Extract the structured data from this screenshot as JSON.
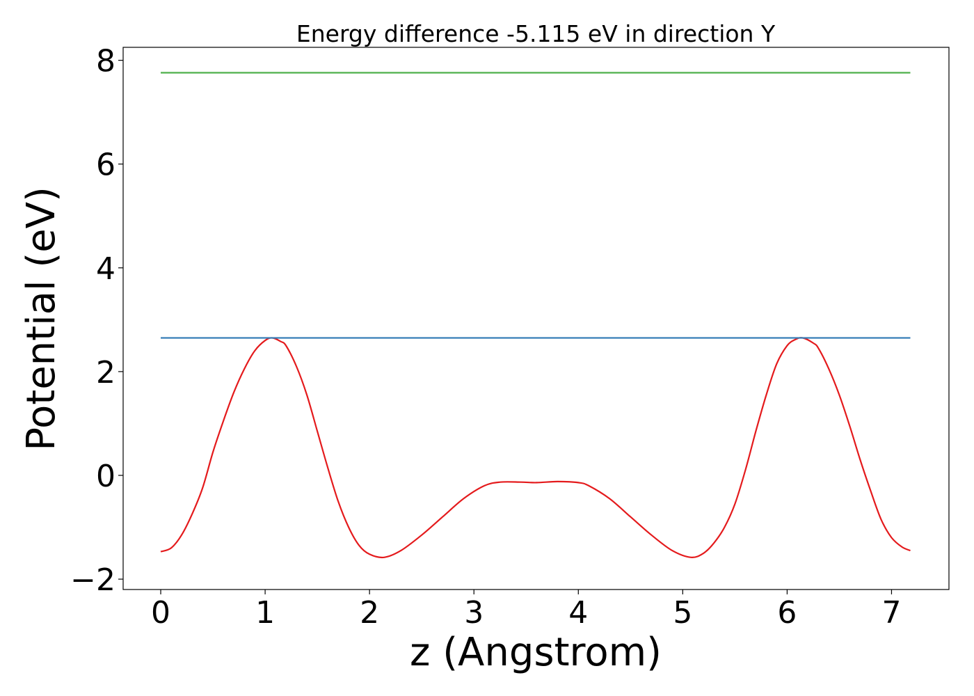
{
  "chart_data": {
    "type": "line",
    "title": "Energy difference -5.115 eV in direction Y",
    "xlabel": "z (Angstrom)",
    "ylabel": "Potential (eV)",
    "xlim": [
      -0.36,
      7.55
    ],
    "ylim": [
      -2.2,
      8.25
    ],
    "x_ticks": [
      0,
      1,
      2,
      3,
      4,
      5,
      6,
      7
    ],
    "x_tick_labels": [
      "0",
      "1",
      "2",
      "3",
      "4",
      "5",
      "6",
      "7"
    ],
    "y_ticks": [
      -2,
      0,
      2,
      4,
      6,
      8
    ],
    "y_tick_labels": [
      "−2",
      "0",
      "2",
      "4",
      "6",
      "8"
    ],
    "grid": false,
    "legend": "none",
    "series": [
      {
        "color": "#e41a1c",
        "x": [
          0.0,
          0.1,
          0.2,
          0.3,
          0.4,
          0.5,
          0.6,
          0.7,
          0.8,
          0.9,
          1.0,
          1.07,
          1.15,
          1.2,
          1.3,
          1.4,
          1.5,
          1.6,
          1.7,
          1.8,
          1.9,
          2.0,
          2.14,
          2.3,
          2.5,
          2.7,
          2.9,
          3.1,
          3.25,
          3.45,
          3.6,
          3.8,
          4.0,
          4.1,
          4.3,
          4.5,
          4.7,
          4.9,
          5.08,
          5.2,
          5.3,
          5.4,
          5.5,
          5.6,
          5.7,
          5.8,
          5.9,
          6.0,
          6.08,
          6.15,
          6.25,
          6.3,
          6.4,
          6.5,
          6.6,
          6.7,
          6.8,
          6.9,
          7.0,
          7.1,
          7.18
        ],
        "y": [
          -1.47,
          -1.4,
          -1.15,
          -0.75,
          -0.25,
          0.45,
          1.05,
          1.6,
          2.05,
          2.4,
          2.6,
          2.65,
          2.58,
          2.5,
          2.1,
          1.55,
          0.85,
          0.15,
          -0.5,
          -1.0,
          -1.35,
          -1.52,
          -1.58,
          -1.45,
          -1.15,
          -0.8,
          -0.45,
          -0.2,
          -0.13,
          -0.13,
          -0.14,
          -0.12,
          -0.14,
          -0.2,
          -0.45,
          -0.8,
          -1.15,
          -1.45,
          -1.58,
          -1.5,
          -1.3,
          -1.0,
          -0.55,
          0.1,
          0.85,
          1.55,
          2.15,
          2.5,
          2.62,
          2.65,
          2.55,
          2.45,
          2.05,
          1.55,
          0.95,
          0.3,
          -0.3,
          -0.85,
          -1.2,
          -1.38,
          -1.45
        ]
      },
      {
        "color": "#377eb8",
        "x": [
          0.0,
          7.18
        ],
        "y": [
          2.65,
          2.65
        ]
      },
      {
        "color": "#4daf4a",
        "x": [
          0.0,
          7.18
        ],
        "y": [
          7.76,
          7.76
        ]
      }
    ]
  }
}
